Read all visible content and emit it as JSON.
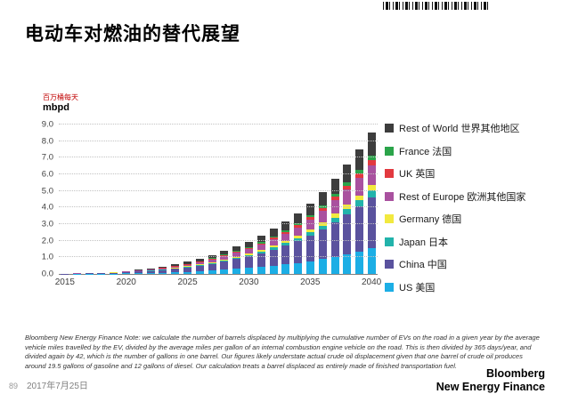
{
  "slide": {
    "title": "电动车对燃油的替代展望",
    "page_number": "89",
    "date": "2017年7月25日",
    "footnote": "Bloomberg New Energy Finance Note: we calculate the number of barrels displaced by multiplying the cumulative number of EVs on the road in a given year by the average vehicle miles travelled by the EV, divided by the average miles per gallon of an internal combustion engine vehicle on the road. This is then divided by 365 days/year, and divided again by 42, which is the number of gallons in one barrel. Our figures likely understate actual crude oil displacement given that one barrel of crude oil produces around 19.5 gallons of gasoline and 12 gallons of diesel. Our calculation treats a barrel displaced as entirely made of finished transportation fuel.",
    "logo_line1": "Bloomberg",
    "logo_line2": "New Energy Finance"
  },
  "chart_data": {
    "type": "bar",
    "stacked": true,
    "title": "",
    "unit_label_cn": "百万桶每天",
    "unit_label_en": "mbpd",
    "ylim": [
      0,
      9
    ],
    "y_tick_step": 1,
    "grid": "dotted-horizontal",
    "legend_position": "right",
    "x": [
      2015,
      2016,
      2017,
      2018,
      2019,
      2020,
      2021,
      2022,
      2023,
      2024,
      2025,
      2026,
      2027,
      2028,
      2029,
      2030,
      2031,
      2032,
      2033,
      2034,
      2035,
      2036,
      2037,
      2038,
      2039,
      2040
    ],
    "x_tick_labels": [
      "2015",
      "2020",
      "2025",
      "2030",
      "2035",
      "2040"
    ],
    "series": [
      {
        "name": "US",
        "label_cn": "美国",
        "color": "#1caee5",
        "values": [
          0.0,
          0.01,
          0.01,
          0.02,
          0.02,
          0.03,
          0.05,
          0.06,
          0.08,
          0.1,
          0.13,
          0.17,
          0.2,
          0.25,
          0.3,
          0.35,
          0.41,
          0.49,
          0.57,
          0.66,
          0.77,
          0.89,
          1.04,
          1.19,
          1.35,
          1.53
        ]
      },
      {
        "name": "China",
        "label_cn": "中国",
        "color": "#5a529e",
        "values": [
          0.01,
          0.01,
          0.02,
          0.03,
          0.05,
          0.06,
          0.09,
          0.12,
          0.16,
          0.21,
          0.26,
          0.33,
          0.41,
          0.5,
          0.59,
          0.7,
          0.83,
          0.97,
          1.13,
          1.31,
          1.53,
          1.78,
          2.07,
          2.38,
          2.7,
          3.06
        ]
      },
      {
        "name": "Japan",
        "label_cn": "日本",
        "color": "#22b3ab",
        "values": [
          0.0,
          0.0,
          0.0,
          0.0,
          0.01,
          0.01,
          0.01,
          0.02,
          0.02,
          0.03,
          0.04,
          0.05,
          0.06,
          0.07,
          0.08,
          0.1,
          0.12,
          0.14,
          0.16,
          0.18,
          0.21,
          0.25,
          0.29,
          0.33,
          0.38,
          0.43
        ]
      },
      {
        "name": "Germany",
        "label_cn": "德国",
        "color": "#f2e93f",
        "values": [
          0.0,
          0.0,
          0.0,
          0.0,
          0.01,
          0.01,
          0.01,
          0.01,
          0.02,
          0.02,
          0.03,
          0.04,
          0.05,
          0.06,
          0.07,
          0.08,
          0.09,
          0.11,
          0.13,
          0.15,
          0.17,
          0.2,
          0.23,
          0.26,
          0.3,
          0.34
        ]
      },
      {
        "name": "Rest of Europe",
        "label_cn": "欧洲其他国家",
        "color": "#a9519f",
        "values": [
          0.0,
          0.01,
          0.01,
          0.01,
          0.02,
          0.03,
          0.04,
          0.05,
          0.06,
          0.08,
          0.1,
          0.13,
          0.16,
          0.19,
          0.23,
          0.27,
          0.32,
          0.38,
          0.44,
          0.51,
          0.6,
          0.69,
          0.81,
          0.92,
          1.05,
          1.19
        ]
      },
      {
        "name": "UK",
        "label_cn": "英国",
        "color": "#e2393f",
        "values": [
          0.0,
          0.0,
          0.0,
          0.0,
          0.0,
          0.01,
          0.01,
          0.01,
          0.02,
          0.02,
          0.03,
          0.03,
          0.04,
          0.05,
          0.06,
          0.07,
          0.08,
          0.09,
          0.11,
          0.13,
          0.15,
          0.17,
          0.2,
          0.23,
          0.26,
          0.3
        ]
      },
      {
        "name": "France",
        "label_cn": "法国",
        "color": "#2ba44a",
        "values": [
          0.0,
          0.0,
          0.0,
          0.0,
          0.0,
          0.01,
          0.01,
          0.01,
          0.01,
          0.02,
          0.02,
          0.03,
          0.03,
          0.04,
          0.05,
          0.06,
          0.07,
          0.08,
          0.09,
          0.11,
          0.13,
          0.15,
          0.17,
          0.2,
          0.23,
          0.26
        ]
      },
      {
        "name": "Rest of World",
        "label_cn": "世界其他地区",
        "color": "#3d3d3d",
        "values": [
          0.0,
          0.01,
          0.01,
          0.01,
          0.02,
          0.03,
          0.04,
          0.05,
          0.07,
          0.09,
          0.12,
          0.15,
          0.19,
          0.23,
          0.27,
          0.32,
          0.38,
          0.45,
          0.52,
          0.6,
          0.7,
          0.82,
          0.95,
          1.09,
          1.24,
          1.4
        ]
      }
    ]
  }
}
